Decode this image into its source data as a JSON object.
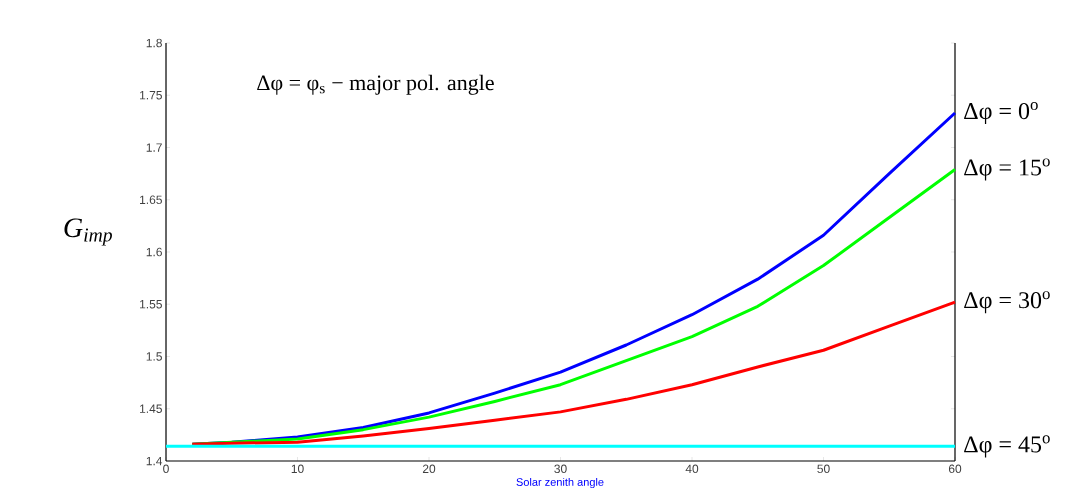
{
  "chart_data": {
    "type": "line",
    "xlabel": "Solar zenith angle",
    "ylabel": "G$_{imp}$",
    "annotations": [
      "Δφ = φ$_{s}$ − major  pol. angle"
    ],
    "xlim": [
      0,
      60
    ],
    "xticks": [
      0,
      10,
      20,
      30,
      40,
      50,
      60
    ],
    "ylim": [
      1.4,
      1.8
    ],
    "yticks": [
      1.4,
      1.45,
      1.5,
      1.55,
      1.6,
      1.65,
      1.7,
      1.75,
      1.8
    ],
    "grid": false,
    "legend": false,
    "marker": "none",
    "line_style": "solid",
    "series": [
      {
        "name": "Δφ = 0$^{o}$",
        "color": "#0000ff",
        "x": [
          2,
          5,
          10,
          15,
          20,
          25,
          30,
          35,
          40,
          45,
          50,
          55,
          60
        ],
        "values": [
          1.416,
          1.418,
          1.423,
          1.432,
          1.446,
          1.465,
          1.485,
          1.511,
          1.54,
          1.574,
          1.616,
          1.675,
          1.733
        ]
      },
      {
        "name": "Δφ = 15$^{o}$",
        "color": "#00ff00",
        "x": [
          2,
          5,
          10,
          15,
          20,
          25,
          30,
          35,
          40,
          45,
          50,
          55,
          60
        ],
        "values": [
          1.416,
          1.418,
          1.421,
          1.43,
          1.442,
          1.457,
          1.473,
          1.496,
          1.519,
          1.548,
          1.587,
          1.633,
          1.679
        ]
      },
      {
        "name": "Δφ = 30$^{o}$",
        "color": "#ff0000",
        "x": [
          2,
          5,
          10,
          15,
          20,
          25,
          30,
          35,
          40,
          45,
          50,
          55,
          60
        ],
        "values": [
          1.416,
          1.417,
          1.418,
          1.424,
          1.431,
          1.439,
          1.447,
          1.459,
          1.473,
          1.49,
          1.506,
          1.529,
          1.552
        ]
      },
      {
        "name": "Δφ = 45$^{o}$",
        "color": "#00ffff",
        "x": [
          0,
          60
        ],
        "values": [
          1.414,
          1.414
        ]
      }
    ]
  }
}
